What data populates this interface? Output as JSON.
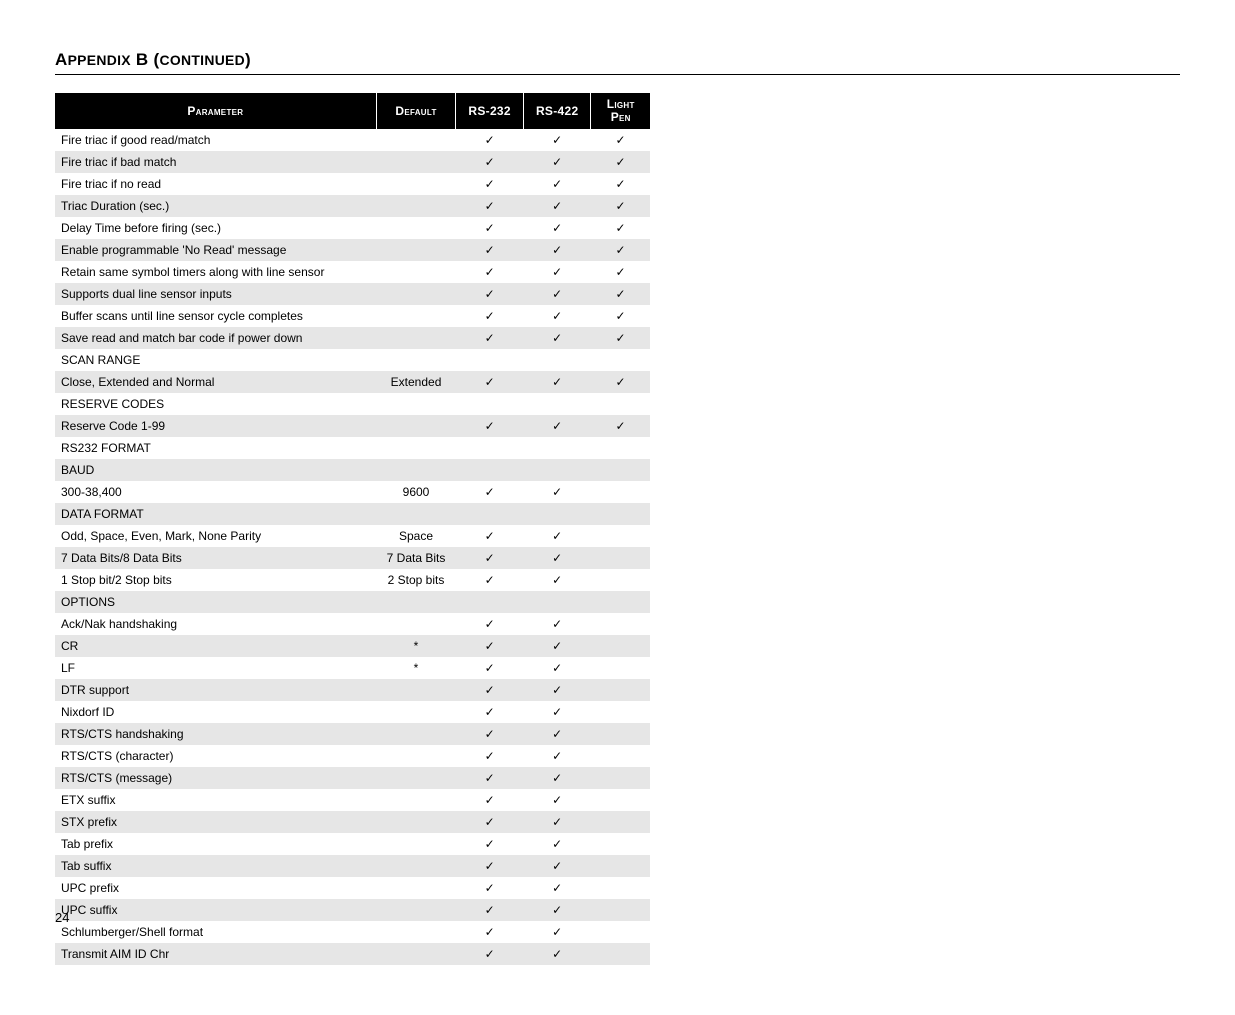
{
  "heading_html": "A<span style='font-size:0.82em'>PPENDIX</span> B (<span style='font-size:0.82em'>CONTINUED</span>)",
  "page_number": "24",
  "columns": {
    "parameter": "Parameter",
    "default": "Default",
    "rs232": "RS-232",
    "rs422": "RS-422",
    "lightpen": "Light Pen"
  },
  "check": "✓",
  "rows": [
    {
      "p": "Fire triac if good read/match",
      "d": "",
      "a": true,
      "b": true,
      "l": true,
      "s": false
    },
    {
      "p": "Fire triac if bad match",
      "d": "",
      "a": true,
      "b": true,
      "l": true,
      "s": true
    },
    {
      "p": "Fire triac if no read",
      "d": "",
      "a": true,
      "b": true,
      "l": true,
      "s": false
    },
    {
      "p": "Triac Duration (sec.)",
      "d": "",
      "a": true,
      "b": true,
      "l": true,
      "s": true
    },
    {
      "p": "Delay Time before firing (sec.)",
      "d": "",
      "a": true,
      "b": true,
      "l": true,
      "s": false
    },
    {
      "p": "Enable programmable 'No Read' message",
      "d": "",
      "a": true,
      "b": true,
      "l": true,
      "s": true
    },
    {
      "p": "Retain same symbol timers along with line sensor",
      "d": "",
      "a": true,
      "b": true,
      "l": true,
      "s": false
    },
    {
      "p": "Supports dual line sensor inputs",
      "d": "",
      "a": true,
      "b": true,
      "l": true,
      "s": true
    },
    {
      "p": "Buffer scans until line sensor cycle completes",
      "d": "",
      "a": true,
      "b": true,
      "l": true,
      "s": false
    },
    {
      "p": "Save read and match bar code if power down",
      "d": "",
      "a": true,
      "b": true,
      "l": true,
      "s": true
    },
    {
      "p": "SCAN RANGE",
      "d": "",
      "a": false,
      "b": false,
      "l": false,
      "s": false
    },
    {
      "p": "Close, Extended and Normal",
      "d": "Extended",
      "a": true,
      "b": true,
      "l": true,
      "s": true
    },
    {
      "p": "RESERVE CODES",
      "d": "",
      "a": false,
      "b": false,
      "l": false,
      "s": false
    },
    {
      "p": "Reserve Code 1-99",
      "d": "",
      "a": true,
      "b": true,
      "l": true,
      "s": true
    },
    {
      "p": "RS232 FORMAT",
      "d": "",
      "a": false,
      "b": false,
      "l": false,
      "s": false
    },
    {
      "p": "BAUD",
      "d": "",
      "a": false,
      "b": false,
      "l": false,
      "s": true
    },
    {
      "p": "300-38,400",
      "d": "9600",
      "a": true,
      "b": true,
      "l": false,
      "s": false
    },
    {
      "p": "DATA FORMAT",
      "d": "",
      "a": false,
      "b": false,
      "l": false,
      "s": true
    },
    {
      "p": "Odd, Space, Even, Mark, None Parity",
      "d": "Space",
      "a": true,
      "b": true,
      "l": false,
      "s": false
    },
    {
      "p": "7 Data Bits/8 Data Bits",
      "d": "7 Data Bits",
      "a": true,
      "b": true,
      "l": false,
      "s": true
    },
    {
      "p": "1 Stop bit/2 Stop bits",
      "d": "2 Stop bits",
      "a": true,
      "b": true,
      "l": false,
      "s": false
    },
    {
      "p": "OPTIONS",
      "d": "",
      "a": false,
      "b": false,
      "l": false,
      "s": true
    },
    {
      "p": "Ack/Nak handshaking",
      "d": "",
      "a": true,
      "b": true,
      "l": false,
      "s": false
    },
    {
      "p": "CR",
      "d": "*",
      "a": true,
      "b": true,
      "l": false,
      "s": true
    },
    {
      "p": "LF",
      "d": "*",
      "a": true,
      "b": true,
      "l": false,
      "s": false
    },
    {
      "p": "DTR support",
      "d": "",
      "a": true,
      "b": true,
      "l": false,
      "s": true
    },
    {
      "p": "Nixdorf ID",
      "d": "",
      "a": true,
      "b": true,
      "l": false,
      "s": false
    },
    {
      "p": "RTS/CTS handshaking",
      "d": "",
      "a": true,
      "b": true,
      "l": false,
      "s": true
    },
    {
      "p": "RTS/CTS (character)",
      "d": "",
      "a": true,
      "b": true,
      "l": false,
      "s": false
    },
    {
      "p": "RTS/CTS (message)",
      "d": "",
      "a": true,
      "b": true,
      "l": false,
      "s": true
    },
    {
      "p": "ETX suffix",
      "d": "",
      "a": true,
      "b": true,
      "l": false,
      "s": false
    },
    {
      "p": "STX prefix",
      "d": "",
      "a": true,
      "b": true,
      "l": false,
      "s": true
    },
    {
      "p": "Tab prefix",
      "d": "",
      "a": true,
      "b": true,
      "l": false,
      "s": false
    },
    {
      "p": "Tab suffix",
      "d": "",
      "a": true,
      "b": true,
      "l": false,
      "s": true
    },
    {
      "p": "UPC prefix",
      "d": "",
      "a": true,
      "b": true,
      "l": false,
      "s": false
    },
    {
      "p": "UPC suffix",
      "d": "",
      "a": true,
      "b": true,
      "l": false,
      "s": true
    },
    {
      "p": "Schlumberger/Shell format",
      "d": "",
      "a": true,
      "b": true,
      "l": false,
      "s": false
    },
    {
      "p": "Transmit AIM ID Chr",
      "d": "",
      "a": true,
      "b": true,
      "l": false,
      "s": true
    }
  ]
}
